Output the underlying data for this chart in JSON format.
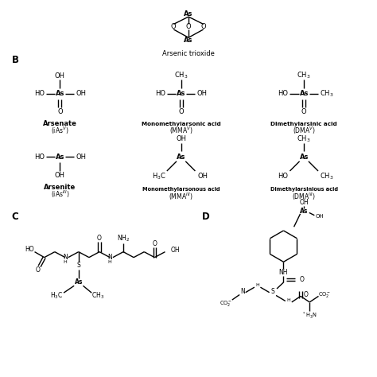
{
  "background_color": "#ffffff",
  "line_color": "#000000",
  "figsize": [
    4.74,
    4.74
  ],
  "dpi": 100,
  "xlim": [
    0,
    10
  ],
  "ylim": [
    0,
    10
  ]
}
